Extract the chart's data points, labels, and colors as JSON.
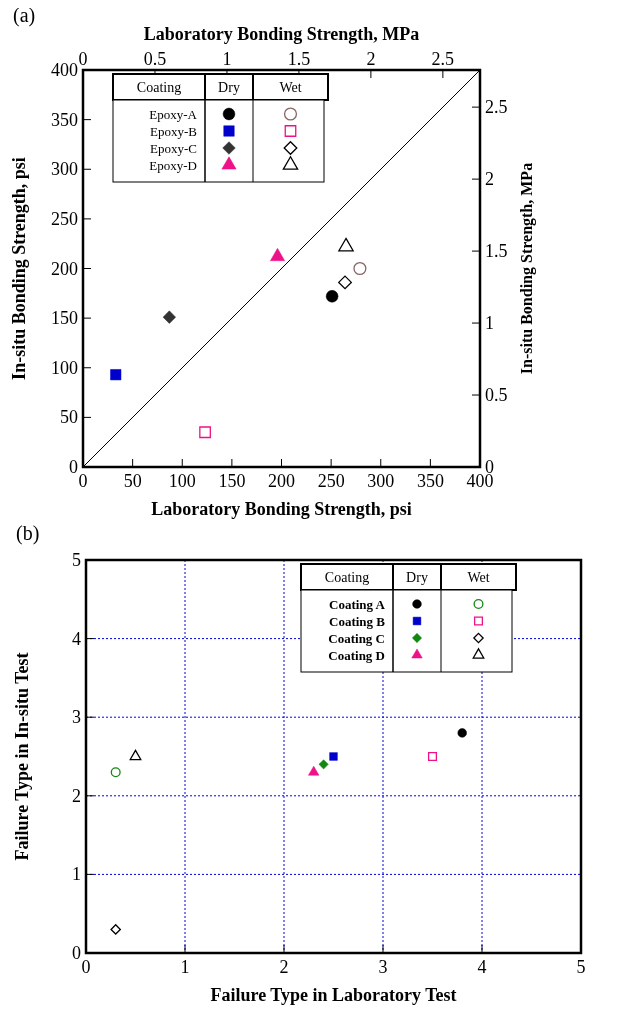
{
  "chart_data": [
    {
      "type": "scatter",
      "xlabel": "Laboratory Bonding Strength, psi",
      "ylabel": "In-situ Bonding Strength, psi",
      "x2label": "Laboratory Bonding Strength, MPa",
      "y2label": "In-situ Bonding Strength, MPa",
      "legend_title": "Coating",
      "annotations": [
        "(a)",
        "Dry",
        "Wet"
      ],
      "xlim": [
        0,
        400
      ],
      "xticks": [
        0,
        50,
        100,
        150,
        200,
        250,
        300,
        350,
        400
      ],
      "ylim": [
        0,
        400
      ],
      "yticks": [
        0,
        50,
        100,
        150,
        200,
        250,
        300,
        350,
        400
      ],
      "x2lim": [
        0,
        2.758
      ],
      "x2ticks": [
        0,
        0.5,
        1,
        1.5,
        2,
        2.5
      ],
      "y2lim": [
        0,
        2.758
      ],
      "y2ticks": [
        0,
        0.5,
        1,
        1.5,
        2,
        2.5
      ],
      "legend": "top left",
      "series": [
        {
          "name": "Epoxy-A",
          "color": "#000000",
          "marker": "circle",
          "x": [
            251
          ],
          "values": [
            172
          ]
        },
        {
          "name": "Epoxy-B",
          "color": "#0000cc",
          "marker": "square",
          "x": [
            33
          ],
          "values": [
            93
          ]
        },
        {
          "name": "Epoxy-C",
          "color": "#333333",
          "marker": "diamond",
          "x": [
            87
          ],
          "values": [
            151
          ]
        },
        {
          "name": "Epoxy-D",
          "color": "#ee1188",
          "marker": "triangle",
          "x": [
            196
          ],
          "values": [
            212
          ]
        },
        {
          "color": "#886666",
          "marker": "circle-open",
          "x": [
            279
          ],
          "values": [
            200
          ]
        },
        {
          "color": "#ee1188",
          "marker": "square-open",
          "x": [
            123
          ],
          "values": [
            35
          ]
        },
        {
          "color": "#000000",
          "marker": "diamond-open",
          "x": [
            264
          ],
          "values": [
            186
          ]
        },
        {
          "color": "#000000",
          "marker": "triangle-open",
          "x": [
            265
          ],
          "values": [
            222
          ]
        },
        {
          "type": "line",
          "color": "#000000",
          "marker": "none",
          "x": [
            0,
            400
          ],
          "values": [
            0,
            400
          ]
        }
      ]
    },
    {
      "type": "scatter",
      "xlabel": "Failure Type in Laboratory Test",
      "ylabel": "Failure Type in In-situ Test",
      "legend_title": "Coating",
      "annotations": [
        "(b)",
        "Dry",
        "Wet"
      ],
      "xlim": [
        0,
        5
      ],
      "xticks": [
        0,
        1,
        2,
        3,
        4,
        5
      ],
      "ylim": [
        0,
        5
      ],
      "yticks": [
        0,
        1,
        2,
        3,
        4,
        5
      ],
      "grid": true,
      "legend": "top right",
      "series": [
        {
          "name": "Coating A",
          "color": "#000000",
          "marker": "circle",
          "x": [
            3.8
          ],
          "values": [
            2.8
          ]
        },
        {
          "name": "Coating B",
          "color": "#0000cc",
          "marker": "square",
          "x": [
            2.5
          ],
          "values": [
            2.5
          ]
        },
        {
          "name": "Coating C",
          "color": "#118811",
          "marker": "diamond",
          "x": [
            2.4
          ],
          "values": [
            2.4
          ]
        },
        {
          "name": "Coating D",
          "color": "#ee1188",
          "marker": "triangle",
          "x": [
            2.3
          ],
          "values": [
            2.3
          ]
        },
        {
          "color": "#118811",
          "marker": "circle-open",
          "x": [
            0.3
          ],
          "values": [
            2.3
          ]
        },
        {
          "color": "#ee1188",
          "marker": "square-open",
          "x": [
            3.5
          ],
          "values": [
            2.5
          ]
        },
        {
          "color": "#000000",
          "marker": "diamond-open",
          "x": [
            0.3
          ],
          "values": [
            0.3
          ]
        },
        {
          "color": "#000000",
          "marker": "triangle-open",
          "x": [
            0.5
          ],
          "values": [
            2.5
          ]
        }
      ]
    }
  ]
}
